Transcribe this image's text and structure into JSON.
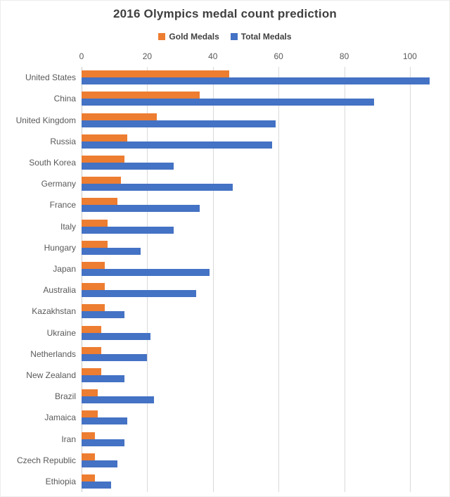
{
  "chart_data": {
    "type": "bar",
    "orientation": "horizontal",
    "title": "2016 Olympics medal count prediction",
    "categories": [
      "United States",
      "China",
      "United Kingdom",
      "Russia",
      "South Korea",
      "Germany",
      "France",
      "Italy",
      "Hungary",
      "Japan",
      "Australia",
      "Kazakhstan",
      "Ukraine",
      "Netherlands",
      "New Zealand",
      "Brazil",
      "Jamaica",
      "Iran",
      "Czech Republic",
      "Ethiopia"
    ],
    "series": [
      {
        "name": "Gold Medals",
        "color": "#ED7D31",
        "values": [
          45,
          36,
          23,
          14,
          13,
          12,
          11,
          8,
          8,
          7,
          7,
          7,
          6,
          6,
          6,
          5,
          5,
          4,
          4,
          4
        ]
      },
      {
        "name": "Total Medals",
        "color": "#4472C4",
        "values": [
          106,
          89,
          59,
          58,
          28,
          46,
          36,
          28,
          18,
          39,
          35,
          13,
          21,
          20,
          13,
          22,
          14,
          13,
          11,
          9
        ]
      }
    ],
    "x_ticks": [
      0,
      20,
      40,
      60,
      80,
      100
    ],
    "xlim": [
      0,
      106
    ],
    "legend_position": "top",
    "grid": true
  },
  "colors": {
    "title_text": "#3f3f3f",
    "axis_text": "#595959",
    "gridline": "#d9d9d9",
    "background": "#ffffff",
    "gold_series": "#ED7D31",
    "total_series": "#4472C4"
  }
}
